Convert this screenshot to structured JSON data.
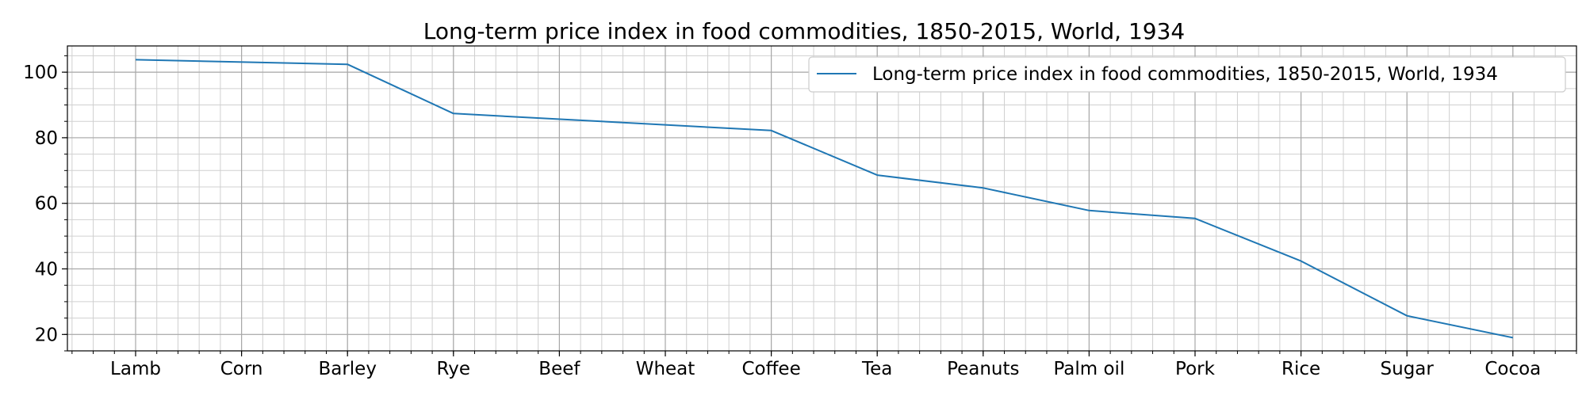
{
  "chart_data": {
    "type": "line",
    "title": "Long-term price index in food commodities, 1850-2015, World, 1934",
    "xlabel": "",
    "ylabel": "",
    "categories": [
      "Lamb",
      "Corn",
      "Barley",
      "Rye",
      "Beef",
      "Wheat",
      "Coffee",
      "Tea",
      "Peanuts",
      "Palm oil",
      "Pork",
      "Rice",
      "Sugar",
      "Cocoa"
    ],
    "series": [
      {
        "name": "Long-term price index in food commodities, 1850-2015, World, 1934",
        "values": [
          103.8,
          null,
          102.4,
          87.4,
          null,
          null,
          82.2,
          68.6,
          64.7,
          57.8,
          55.4,
          42.4,
          25.7,
          19.0
        ],
        "color": "#1f77b4"
      }
    ],
    "yticks": [
      20,
      40,
      60,
      80,
      100
    ],
    "ylim": [
      15,
      108
    ],
    "grid": true,
    "minor_grid": true,
    "legend_position": "top-right"
  }
}
